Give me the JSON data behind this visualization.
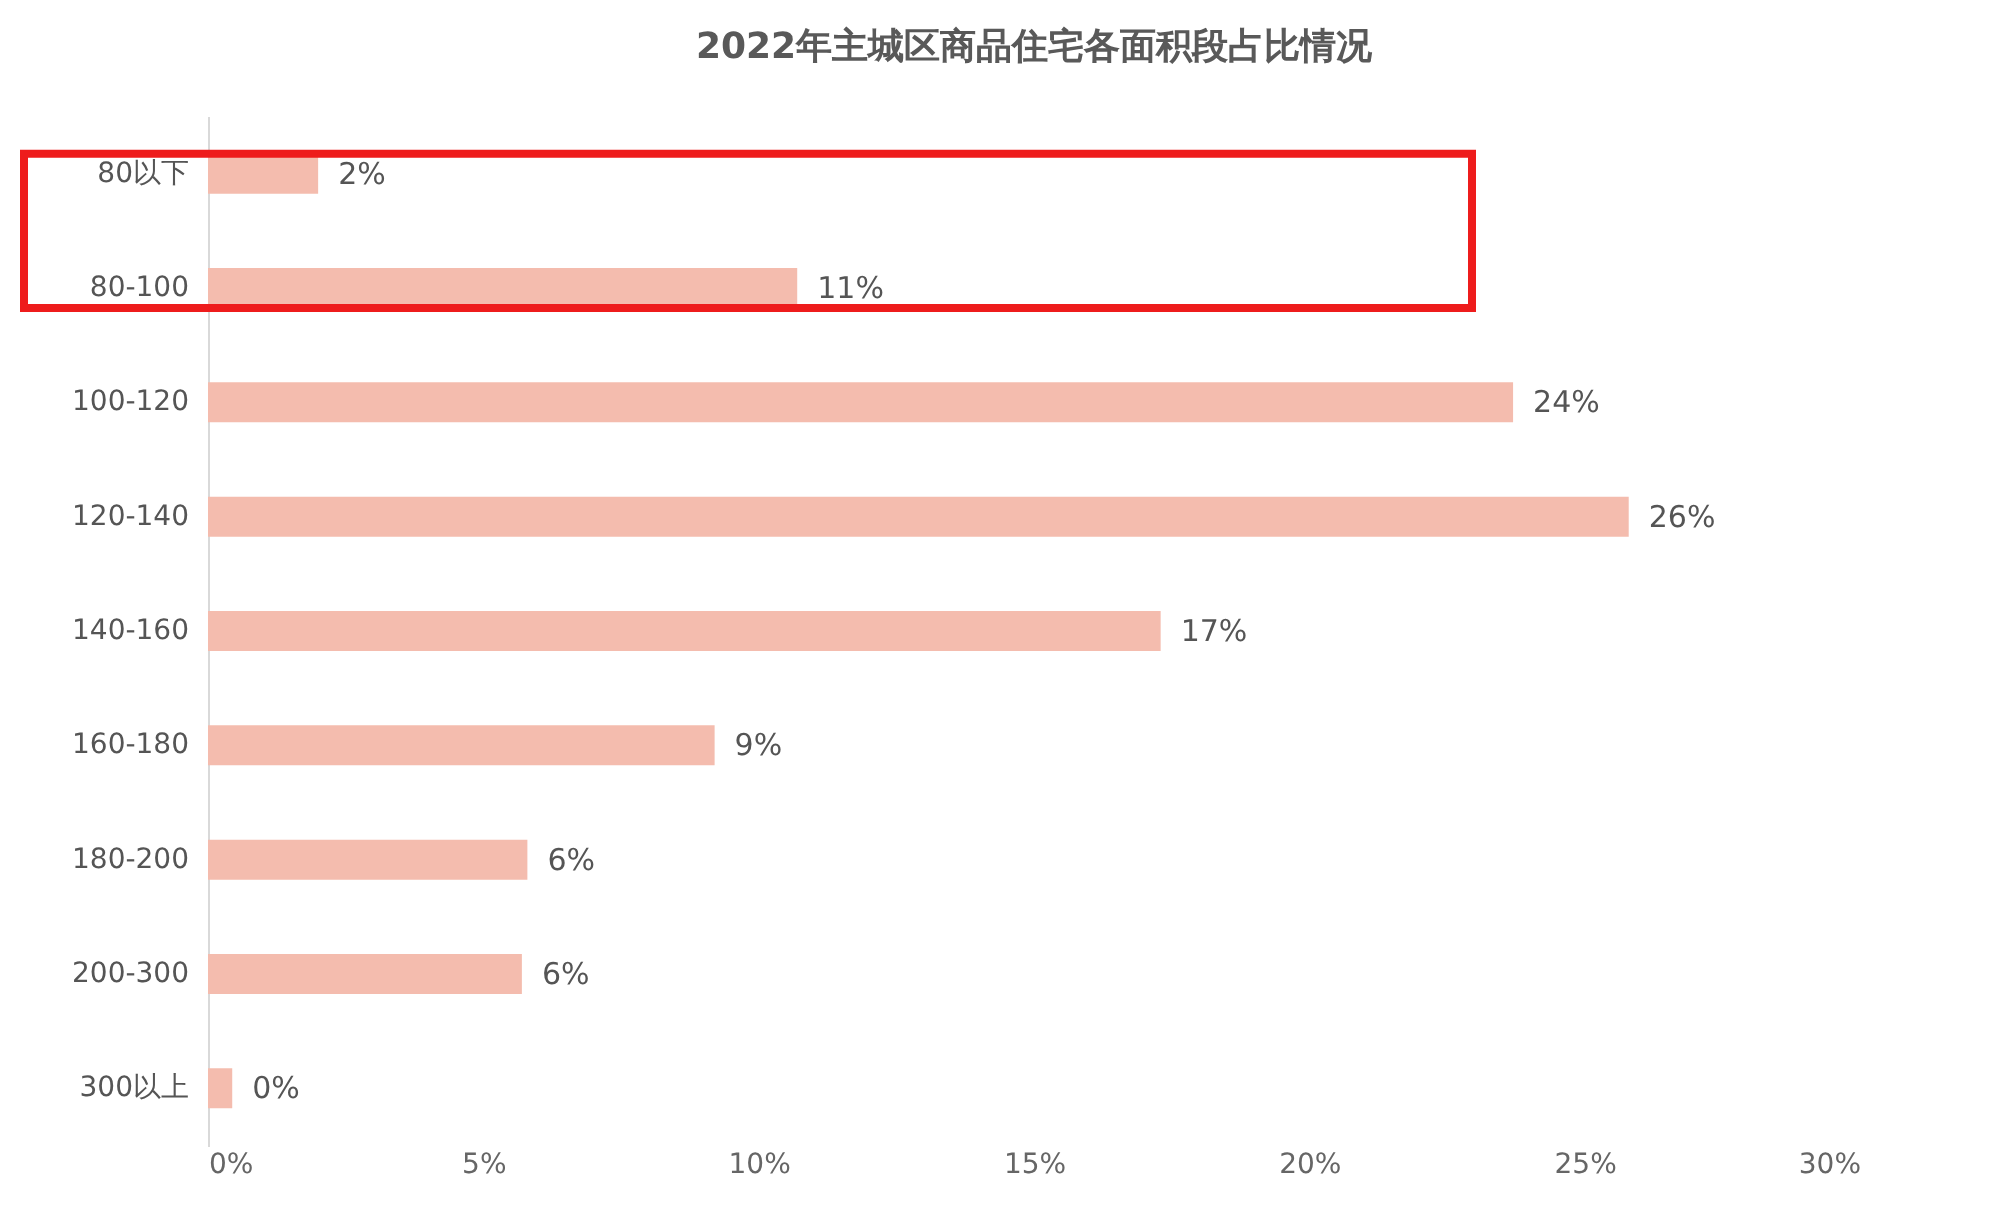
{
  "chart_data": {
    "type": "bar",
    "orientation": "horizontal",
    "title": "2022年主城区商品住宅各面积段占比情况",
    "categories": [
      "80以下",
      "80-100",
      "100-120",
      "120-140",
      "140-160",
      "160-180",
      "180-200",
      "200-300",
      "300以上"
    ],
    "values": [
      2.0,
      10.7,
      23.7,
      25.8,
      17.3,
      9.2,
      5.8,
      5.7,
      0.44
    ],
    "value_labels": [
      "2%",
      "11%",
      "24%",
      "26%",
      "17%",
      "9%",
      "6%",
      "6%",
      "0%"
    ],
    "color": "#f4bcae",
    "xlim": [
      0,
      30
    ],
    "xticks": [
      {
        "value": 0,
        "label": "0%"
      },
      {
        "value": 5,
        "label": "5%"
      },
      {
        "value": 10,
        "label": "10%"
      },
      {
        "value": 15,
        "label": "15%"
      },
      {
        "value": 20,
        "label": "20%"
      },
      {
        "value": 25,
        "label": "25%"
      },
      {
        "value": 30,
        "label": "30%"
      }
    ],
    "grid": false
  }
}
